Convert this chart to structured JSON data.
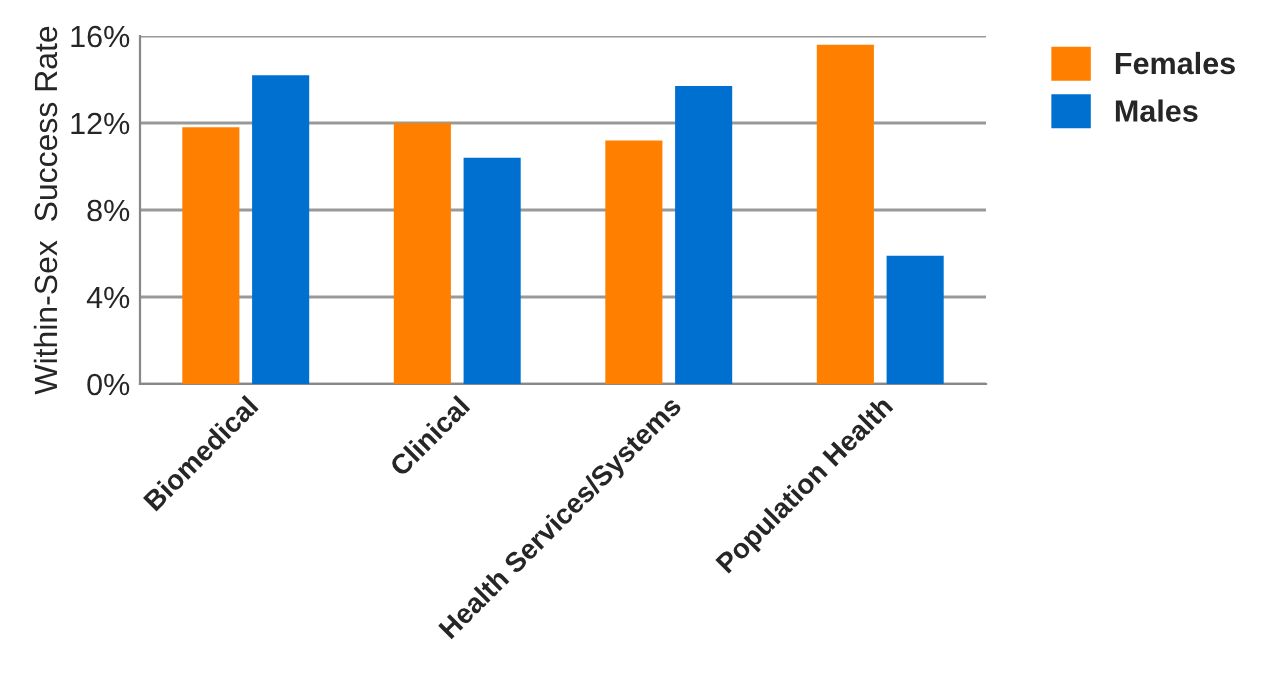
{
  "chart_data": {
    "type": "bar",
    "ylabel": "Within-Sex  Success Rate",
    "categories": [
      "Biomedical",
      "Clinical",
      "Health Services/Systems",
      "Population Health"
    ],
    "series": [
      {
        "name": "Females",
        "color": "#ff7f00",
        "values": [
          11.8,
          12.0,
          11.2,
          15.6
        ]
      },
      {
        "name": "Males",
        "color": "#0070d0",
        "values": [
          14.2,
          10.4,
          13.7,
          5.9
        ]
      }
    ],
    "ylim": [
      0,
      16
    ],
    "yticks": [
      {
        "value": 0,
        "label": "0%"
      },
      {
        "value": 4,
        "label": "4%"
      },
      {
        "value": 8,
        "label": "8%"
      },
      {
        "value": 12,
        "label": "12%"
      },
      {
        "value": 16,
        "label": "16%"
      }
    ],
    "grid": "y",
    "legend": "top right"
  }
}
